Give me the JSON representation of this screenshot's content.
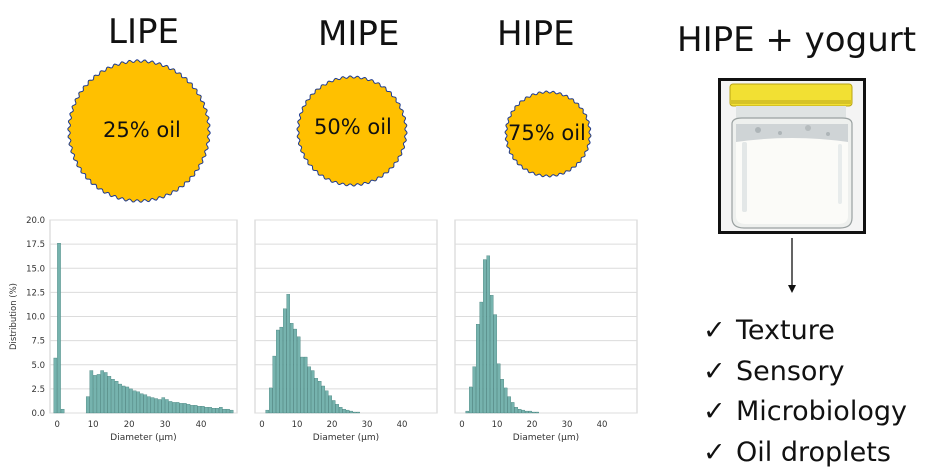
{
  "titles": {
    "lipe": "LIPE",
    "mipe": "MIPE",
    "hipe": "HIPE",
    "hipe_yogurt": "HIPE + yogurt"
  },
  "droplets": {
    "lipe": "25% oil",
    "mipe": "50% oil",
    "hipe": "75% oil"
  },
  "colors": {
    "droplet_fill": "#FFC000",
    "droplet_outline": "#1F3B8F",
    "bar_fill": "#76B3AE",
    "bar_edge": "#2F6F6A",
    "jar_lid": "#F2E033"
  },
  "checklist": [
    "Texture",
    "Sensory",
    "Microbiology",
    "Oil droplets"
  ],
  "chart_data": [
    {
      "type": "bar",
      "name": "LIPE",
      "xlabel": "Diameter (µm)",
      "ylabel": "Distribution (%)",
      "ylim": [
        0,
        20
      ],
      "yticks": [
        "0.0",
        "2.5",
        "5.0",
        "7.5",
        "10.0",
        "12.5",
        "15.0",
        "17.5",
        "20.0"
      ],
      "xticks": [
        "0",
        "10",
        "20",
        "30",
        "40"
      ],
      "grid": true,
      "x": [
        -0.5,
        0.5,
        1.5,
        8.5,
        9.5,
        10.5,
        11.5,
        12.5,
        13.5,
        14.5,
        15.5,
        16.5,
        17.5,
        18.5,
        19.5,
        20.5,
        21.5,
        22.5,
        23.5,
        24.5,
        25.5,
        26.5,
        27.5,
        28.5,
        29.5,
        30.5,
        31.5,
        32.5,
        33.5,
        34.5,
        35.5,
        36.5,
        37.5,
        38.5,
        39.5,
        40.5,
        41.5,
        42.5,
        43.5,
        44.5,
        45.5,
        46.5,
        47.5,
        48.5
      ],
      "values": [
        5.7,
        17.6,
        0.4,
        1.7,
        4.4,
        3.9,
        4.0,
        4.4,
        4.2,
        3.8,
        3.5,
        3.3,
        3.0,
        2.8,
        2.7,
        2.5,
        2.3,
        2.2,
        2.0,
        1.9,
        1.7,
        1.6,
        1.5,
        1.4,
        1.6,
        1.4,
        1.2,
        1.1,
        1.1,
        1.0,
        1.0,
        0.9,
        0.8,
        0.8,
        0.7,
        0.7,
        0.6,
        0.6,
        0.5,
        0.5,
        0.6,
        0.4,
        0.4,
        0.3
      ]
    },
    {
      "type": "bar",
      "name": "MIPE",
      "xlabel": "Diameter (µm)",
      "ylim": [
        0,
        20
      ],
      "xticks": [
        "0",
        "10",
        "20",
        "30",
        "40"
      ],
      "grid": true,
      "x": [
        1.5,
        2.5,
        3.5,
        4.5,
        5.5,
        6.5,
        7.5,
        8.5,
        9.5,
        10.5,
        11.5,
        12.5,
        13.5,
        14.5,
        15.5,
        16.5,
        17.5,
        18.5,
        19.5,
        20.5,
        21.5,
        22.5,
        23.5,
        24.5,
        25.5,
        26.5,
        27.5
      ],
      "values": [
        0.3,
        2.6,
        5.9,
        8.6,
        8.9,
        10.8,
        12.3,
        9.3,
        8.7,
        7.9,
        5.8,
        5.8,
        4.8,
        4.4,
        3.6,
        3.3,
        2.8,
        2.3,
        1.8,
        1.3,
        0.9,
        0.6,
        0.4,
        0.3,
        0.2,
        0.1,
        0.1
      ]
    },
    {
      "type": "bar",
      "name": "HIPE",
      "xlabel": "Diameter (µm)",
      "ylim": [
        0,
        20
      ],
      "xticks": [
        "0",
        "10",
        "20",
        "30",
        "40"
      ],
      "grid": true,
      "x": [
        1.5,
        2.5,
        3.5,
        4.5,
        5.5,
        6.5,
        7.5,
        8.5,
        9.5,
        10.5,
        11.5,
        12.5,
        13.5,
        14.5,
        15.5,
        16.5,
        17.5,
        18.5,
        19.5,
        20.5,
        21.5
      ],
      "values": [
        0.2,
        2.7,
        4.8,
        9.2,
        11.5,
        15.9,
        16.3,
        12.2,
        10.2,
        5.1,
        3.5,
        2.6,
        1.7,
        1.1,
        0.6,
        0.4,
        0.3,
        0.2,
        0.2,
        0.1,
        0.1
      ]
    }
  ]
}
